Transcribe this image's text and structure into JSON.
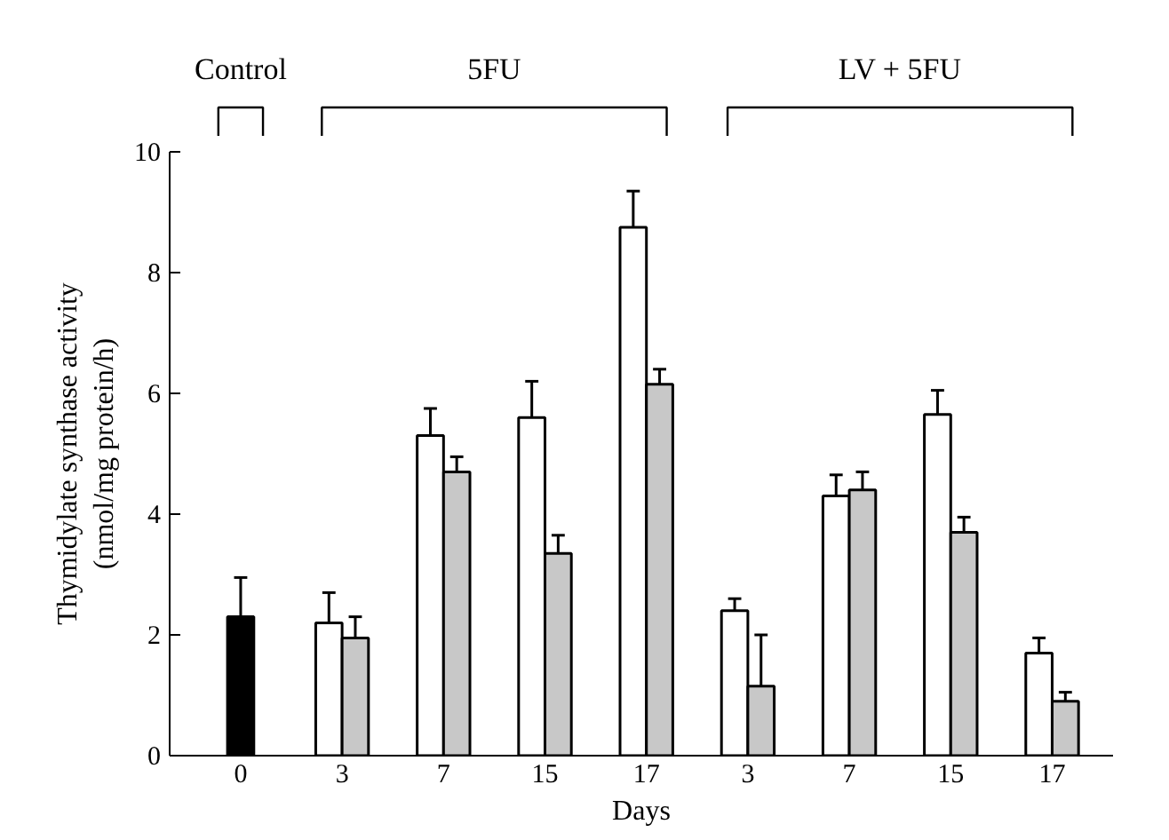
{
  "chart_data": {
    "type": "bar",
    "xlabel": "Days",
    "ylabel": "Thymidylate synthase activity\n(nmol/mg protein/h)",
    "categories": [
      "0",
      "3",
      "7",
      "15",
      "17",
      "3",
      "7",
      "15",
      "17"
    ],
    "series": [
      {
        "color": "#000000",
        "values": [
          2.3,
          null,
          null,
          null,
          null,
          null,
          null,
          null,
          null
        ],
        "errors": [
          [
            2.3,
            2.95
          ],
          null,
          null,
          null,
          null,
          null,
          null,
          null,
          null
        ]
      },
      {
        "color": "#ffffff",
        "values": [
          null,
          2.2,
          5.3,
          5.6,
          8.75,
          2.4,
          4.3,
          5.65,
          1.7
        ],
        "errors": [
          null,
          [
            2.2,
            2.7
          ],
          [
            5.3,
            5.75
          ],
          [
            5.6,
            6.2
          ],
          [
            8.75,
            9.35
          ],
          [
            2.4,
            2.6
          ],
          [
            4.3,
            4.65
          ],
          [
            5.65,
            6.05
          ],
          [
            1.7,
            1.95
          ]
        ]
      },
      {
        "color": "#c8c8c8",
        "values": [
          null,
          1.95,
          4.7,
          3.35,
          6.15,
          1.15,
          4.4,
          3.7,
          0.9
        ],
        "errors": [
          null,
          [
            1.95,
            2.3
          ],
          [
            4.7,
            4.95
          ],
          [
            3.35,
            3.65
          ],
          [
            6.15,
            6.4
          ],
          [
            1.15,
            2.0
          ],
          [
            4.4,
            4.7
          ],
          [
            3.7,
            3.95
          ],
          [
            0.9,
            1.05
          ]
        ]
      }
    ],
    "annotations": [
      "Control",
      "5FU",
      "LV + 5FU"
    ],
    "ylim": [
      0,
      10
    ],
    "yticks": [
      0,
      2,
      4,
      6,
      8,
      10
    ],
    "grid": false
  }
}
